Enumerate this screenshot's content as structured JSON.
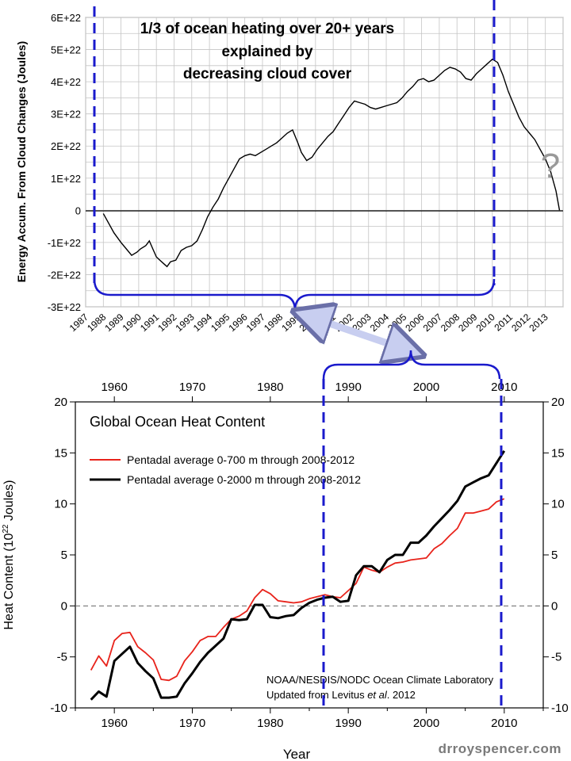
{
  "footer": {
    "watermark": "drroyspencer.com"
  },
  "colors": {
    "blue_dashed": "#1a1acc",
    "black_line": "#000000",
    "red_line": "#e8231b",
    "arrow_fill": "#c8cef0"
  },
  "chart_data": [
    {
      "type": "line",
      "title": "1/3 of ocean heating over 20+ years explained by decreasing cloud cover",
      "title_lines": [
        "1/3 of ocean heating over 20+ years",
        "explained by",
        "decreasing cloud cover"
      ],
      "ylabel": "Energy Accum. From Cloud Changes (Joules)",
      "xlabel": "",
      "xlim": [
        1987,
        2014
      ],
      "ylim": [
        -3e+22,
        6e+22
      ],
      "grid": true,
      "yticks": [
        -3e+22,
        -2e+22,
        -1e+22,
        0,
        1e+22,
        2e+22,
        3e+22,
        4e+22,
        5e+22,
        6e+22
      ],
      "ytick_labels": [
        "-3E+22",
        "-2E+22",
        "-1E+22",
        "0",
        "1E+22",
        "2E+22",
        "3E+22",
        "4E+22",
        "5E+22",
        "6E+22"
      ],
      "xtick_labels": [
        "1987",
        "1988",
        "1989",
        "1990",
        "1991",
        "1992",
        "1993",
        "1994",
        "1995",
        "1996",
        "1997",
        "1998",
        "1999",
        "2000",
        "2001",
        "2002",
        "2003",
        "2004",
        "2005",
        "2006",
        "2007",
        "2008",
        "2009",
        "2010",
        "2011",
        "2012",
        "2013"
      ],
      "x": [
        1988.0,
        1988.3,
        1988.6,
        1989.0,
        1989.3,
        1989.6,
        1989.9,
        1990.1,
        1990.4,
        1990.6,
        1990.8,
        1991.0,
        1991.2,
        1991.4,
        1991.6,
        1991.8,
        1992.1,
        1992.4,
        1992.7,
        1993.0,
        1993.3,
        1993.6,
        1993.9,
        1994.2,
        1994.5,
        1994.8,
        1995.1,
        1995.4,
        1995.7,
        1996.0,
        1996.3,
        1996.6,
        1996.9,
        1997.2,
        1997.5,
        1997.8,
        1998.1,
        1998.4,
        1998.7,
        1999.0,
        1999.2,
        1999.5,
        1999.8,
        2000.1,
        2000.4,
        2000.7,
        2001.0,
        2001.3,
        2001.6,
        2001.9,
        2002.2,
        2002.5,
        2002.8,
        2003.1,
        2003.4,
        2003.7,
        2004.0,
        2004.3,
        2004.6,
        2004.9,
        2005.2,
        2005.5,
        2005.8,
        2006.1,
        2006.4,
        2006.7,
        2007.0,
        2007.3,
        2007.6,
        2007.9,
        2008.2,
        2008.5,
        2008.8,
        2009.1,
        2009.4,
        2009.7,
        2010.0,
        2010.3,
        2010.6,
        2010.9,
        2011.2,
        2011.5,
        2011.8,
        2012.1,
        2012.4,
        2012.7,
        2013.0,
        2013.3,
        2013.6,
        2013.8
      ],
      "values": [
        -1e+21,
        -4e+21,
        -7e+21,
        -1e+22,
        -1.2e+22,
        -1.4e+22,
        -1.3e+22,
        -1.2e+22,
        -1.1e+22,
        -9.5e+21,
        -1.2e+22,
        -1.45e+22,
        -1.55e+22,
        -1.65e+22,
        -1.75e+22,
        -1.6e+22,
        -1.55e+22,
        -1.25e+22,
        -1.15e+22,
        -1.1e+22,
        -9.5e+21,
        -6e+21,
        -2e+21,
        1e+21,
        3.5e+21,
        7e+21,
        1e+22,
        1.3e+22,
        1.6e+22,
        1.7e+22,
        1.75e+22,
        1.7e+22,
        1.8e+22,
        1.9e+22,
        2e+22,
        2.1e+22,
        2.25e+22,
        2.4e+22,
        2.5e+22,
        2.1e+22,
        1.8e+22,
        1.55e+22,
        1.65e+22,
        1.9e+22,
        2.1e+22,
        2.3e+22,
        2.45e+22,
        2.7e+22,
        2.95e+22,
        3.2e+22,
        3.4e+22,
        3.35e+22,
        3.3e+22,
        3.2e+22,
        3.15e+22,
        3.2e+22,
        3.25e+22,
        3.3e+22,
        3.35e+22,
        3.5e+22,
        3.7e+22,
        3.85e+22,
        4.05e+22,
        4.1e+22,
        4e+22,
        4.05e+22,
        4.2e+22,
        4.35e+22,
        4.45e+22,
        4.4e+22,
        4.3e+22,
        4.1e+22,
        4.05e+22,
        4.25e+22,
        4.4e+22,
        4.55e+22,
        4.7e+22,
        4.6e+22,
        4.2e+22,
        3.7e+22,
        3.3e+22,
        2.9e+22,
        2.6e+22,
        2.4e+22,
        2.2e+22,
        1.9e+22,
        1.6e+22,
        1.2e+22,
        6e+21,
        0.0
      ],
      "annotations": {
        "question_mark": "?"
      },
      "markers": {
        "dashed_verticals_x": [
          1988.0,
          2010.5
        ]
      }
    },
    {
      "type": "line",
      "title": "Global Ocean Heat Content",
      "xlabel": "Year",
      "ylabel": "Heat Content (10²² Joules)",
      "ylabel_parts": [
        "Heat Content (10",
        "22",
        " Joules)"
      ],
      "xlim": [
        1955,
        2015
      ],
      "ylim": [
        -10,
        20
      ],
      "xticks": [
        1960,
        1970,
        1980,
        1990,
        2000,
        2010
      ],
      "yticks": [
        -10,
        -5,
        0,
        5,
        10,
        15,
        20
      ],
      "top_xticks": [
        1960,
        1970,
        1980,
        1990,
        2000,
        2010
      ],
      "right_yticks": [
        -10,
        -5,
        0,
        5,
        10,
        15,
        20
      ],
      "grid": false,
      "legend_position": "top-left",
      "source": {
        "line1": "NOAA/NESDIS/NODC Ocean Climate Laboratory",
        "line2_prefix": "Updated from Levitus ",
        "line2_italic": "et al",
        "line2_suffix": ". 2012"
      },
      "x": [
        1957,
        1958,
        1959,
        1960,
        1961,
        1962,
        1963,
        1964,
        1965,
        1966,
        1967,
        1968,
        1969,
        1970,
        1971,
        1972,
        1973,
        1974,
        1975,
        1976,
        1977,
        1978,
        1979,
        1980,
        1981,
        1982,
        1983,
        1984,
        1985,
        1986,
        1987,
        1988,
        1989,
        1990,
        1991,
        1992,
        1993,
        1994,
        1995,
        1996,
        1997,
        1998,
        1999,
        2000,
        2001,
        2002,
        2003,
        2004,
        2005,
        2006,
        2007,
        2008,
        2009,
        2010
      ],
      "series": [
        {
          "name": "Pentadal average 0-700 m through 2008-2012",
          "color": "#e8231b",
          "values": [
            -6.3,
            -4.9,
            -5.9,
            -3.4,
            -2.7,
            -2.6,
            -4.0,
            -4.6,
            -5.3,
            -7.2,
            -7.3,
            -6.9,
            -5.4,
            -4.5,
            -3.4,
            -3.0,
            -3.0,
            -2.1,
            -1.3,
            -1.0,
            -0.5,
            0.8,
            1.6,
            1.2,
            0.5,
            0.4,
            0.3,
            0.4,
            0.7,
            0.9,
            1.1,
            0.9,
            0.8,
            1.5,
            2.2,
            3.8,
            3.5,
            3.3,
            3.8,
            4.2,
            4.3,
            4.5,
            4.6,
            4.7,
            5.6,
            6.1,
            6.9,
            7.6,
            9.1,
            9.1,
            9.3,
            9.5,
            10.2,
            10.5
          ]
        },
        {
          "name": "Pentadal average 0-2000 m through 2008-2012",
          "color": "#000000",
          "values": [
            -9.2,
            -8.4,
            -8.9,
            -5.4,
            -4.7,
            -4.0,
            -5.6,
            -6.4,
            -7.1,
            -9.0,
            -9.0,
            -8.9,
            -7.6,
            -6.6,
            -5.5,
            -4.6,
            -3.9,
            -3.2,
            -1.3,
            -1.4,
            -1.3,
            0.1,
            0.1,
            -1.1,
            -1.2,
            -1.0,
            -0.9,
            -0.2,
            0.3,
            0.6,
            0.8,
            0.9,
            0.4,
            0.5,
            3.0,
            3.9,
            3.9,
            3.3,
            4.5,
            5.0,
            5.0,
            6.2,
            6.2,
            6.9,
            7.8,
            8.6,
            9.4,
            10.3,
            11.7,
            12.1,
            12.5,
            12.8,
            14.0,
            15.2
          ]
        }
      ],
      "markers": {
        "dashed_verticals_x": [
          1987.4,
          2010.3
        ]
      }
    }
  ]
}
